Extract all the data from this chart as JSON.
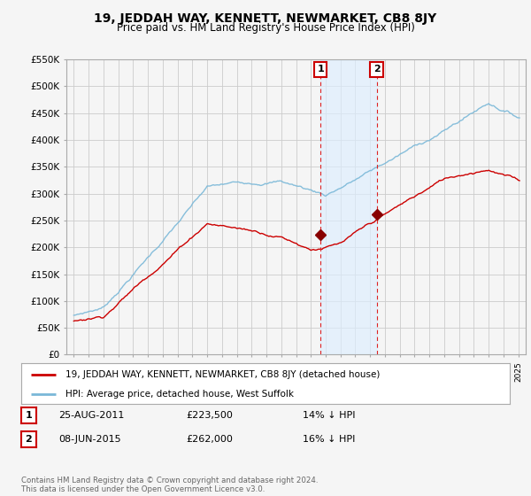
{
  "title": "19, JEDDAH WAY, KENNETT, NEWMARKET, CB8 8JY",
  "subtitle": "Price paid vs. HM Land Registry's House Price Index (HPI)",
  "ylabel_ticks": [
    "£0",
    "£50K",
    "£100K",
    "£150K",
    "£200K",
    "£250K",
    "£300K",
    "£350K",
    "£400K",
    "£450K",
    "£500K",
    "£550K"
  ],
  "ylabel_values": [
    0,
    50000,
    100000,
    150000,
    200000,
    250000,
    300000,
    350000,
    400000,
    450000,
    500000,
    550000
  ],
  "hpi_color": "#7ab8d8",
  "price_color": "#cc0000",
  "background_color": "#f5f5f5",
  "grid_color": "#cccccc",
  "sale1_year": 2011.65,
  "sale1_price": 223500,
  "sale2_year": 2015.44,
  "sale2_price": 262000,
  "vline_color": "#dd2222",
  "shade_color": "#ddeeff",
  "legend_label_price": "19, JEDDAH WAY, KENNETT, NEWMARKET, CB8 8JY (detached house)",
  "legend_label_hpi": "HPI: Average price, detached house, West Suffolk",
  "table_rows": [
    {
      "num": "1",
      "date": "25-AUG-2011",
      "price": "£223,500",
      "pct": "14% ↓ HPI"
    },
    {
      "num": "2",
      "date": "08-JUN-2015",
      "price": "£262,000",
      "pct": "16% ↓ HPI"
    }
  ],
  "footer": "Contains HM Land Registry data © Crown copyright and database right 2024.\nThis data is licensed under the Open Government Licence v3.0.",
  "xmin": 1994.5,
  "xmax": 2025.5
}
